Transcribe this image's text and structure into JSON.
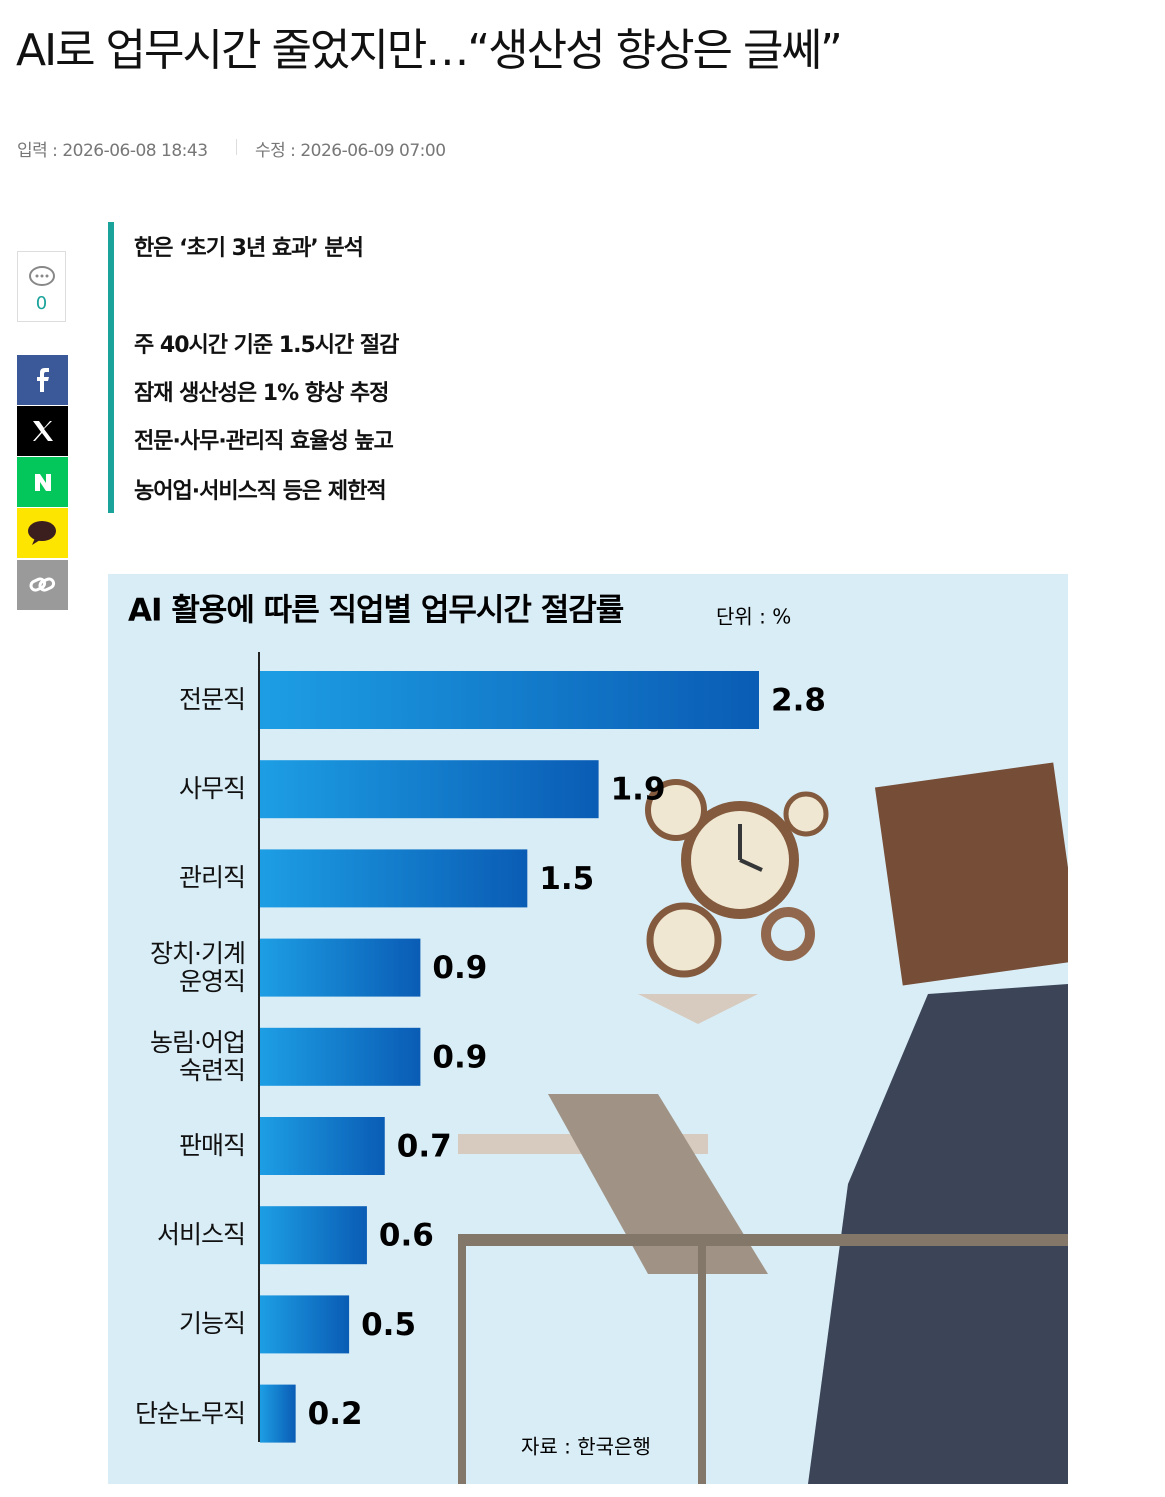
{
  "header": {
    "title": "AI로 업무시간 줄었지만…“생산성 향상은 글쎄”",
    "published": "입력 : 2026-06-08 18:43",
    "modified": "수정 : 2026-06-09 07:00"
  },
  "sidebar": {
    "comment_count": "0"
  },
  "summary": {
    "headline": "한은 ‘초기 3년 효과’ 분석",
    "lines": [
      "주 40시간 기준 1.5시간 절감",
      "잠재 생산성은 1% 향상 추정",
      "전문·사무·관리직 효율성 높고",
      "농어업·서비스직 등은 제한적"
    ]
  },
  "chart_data": {
    "type": "bar",
    "orientation": "horizontal",
    "title": "AI 활용에 따른 직업별 업무시간 절감률",
    "unit_label": "단위 : %",
    "source": "자료 : 한국은행",
    "categories": [
      "전문직",
      "사무직",
      "관리직",
      "장치·기계\n운영직",
      "농림·어업\n숙련직",
      "판매직",
      "서비스직",
      "기능직",
      "단순노무직"
    ],
    "values": [
      2.8,
      1.9,
      1.5,
      0.9,
      0.9,
      0.7,
      0.6,
      0.5,
      0.2
    ],
    "color": "#0b6fc8",
    "xlim": [
      0,
      2.8
    ]
  }
}
